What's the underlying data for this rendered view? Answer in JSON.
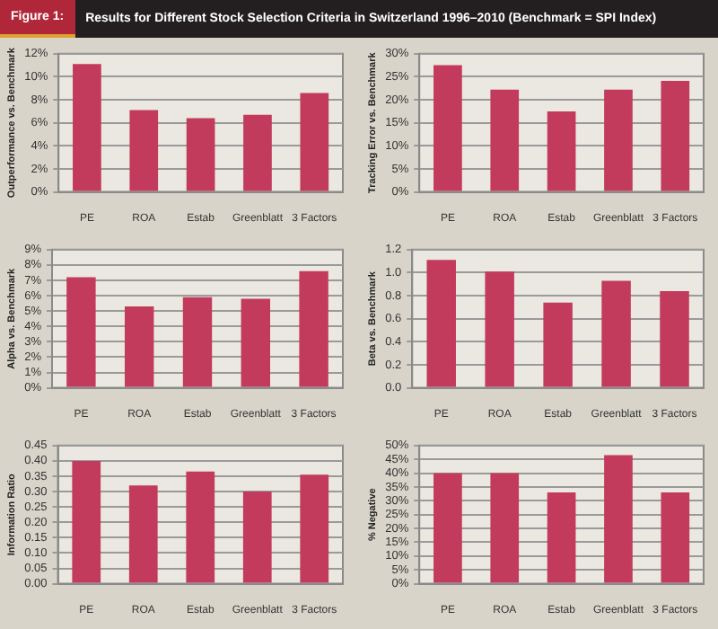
{
  "chart_data": [
    {
      "type": "bar",
      "title": "Results for Different Stock Selection Criteria in Switzerland 1996–2010 (Benchmark = SPI Index)",
      "annotations": [
        "Figure 1:"
      ],
      "ylabel": "Outperformance vs. Benchmark",
      "categories": [
        "PE",
        "ROA",
        "Estab",
        "Greenblatt",
        "3 Factors"
      ],
      "values": [
        11.1,
        7.1,
        6.4,
        6.7,
        8.6
      ],
      "color": "#c23a5c",
      "ylim": [
        0,
        12
      ],
      "yticks": [
        {
          "value": 0,
          "label": "0%"
        },
        {
          "value": 2,
          "label": "2%"
        },
        {
          "value": 4,
          "label": "4%"
        },
        {
          "value": 6,
          "label": "6%"
        },
        {
          "value": 8,
          "label": "8%"
        },
        {
          "value": 10,
          "label": "10%"
        },
        {
          "value": 12,
          "label": "12%"
        }
      ],
      "grid": "y",
      "legend": false
    },
    {
      "type": "bar",
      "ylabel": "Tracking Error vs. Benchmark",
      "categories": [
        "PE",
        "ROA",
        "Estab",
        "Greenblatt",
        "3 Factors"
      ],
      "values": [
        27.5,
        22.2,
        17.5,
        22.2,
        24.1
      ],
      "color": "#c23a5c",
      "ylim": [
        0,
        30
      ],
      "yticks": [
        {
          "value": 0,
          "label": "0%"
        },
        {
          "value": 5,
          "label": "5%"
        },
        {
          "value": 10,
          "label": "10%"
        },
        {
          "value": 15,
          "label": "15%"
        },
        {
          "value": 20,
          "label": "20%"
        },
        {
          "value": 25,
          "label": "25%"
        },
        {
          "value": 30,
          "label": "30%"
        }
      ],
      "grid": "y",
      "legend": false
    },
    {
      "type": "bar",
      "ylabel": "Alpha vs. Benchmark",
      "categories": [
        "PE",
        "ROA",
        "Estab",
        "Greenblatt",
        "3 Factors"
      ],
      "values": [
        7.2,
        5.3,
        5.9,
        5.8,
        7.6
      ],
      "color": "#c23a5c",
      "ylim": [
        0,
        9
      ],
      "yticks": [
        {
          "value": 0,
          "label": "0%"
        },
        {
          "value": 1,
          "label": "1%"
        },
        {
          "value": 2,
          "label": "2%"
        },
        {
          "value": 3,
          "label": "3%"
        },
        {
          "value": 4,
          "label": "4%"
        },
        {
          "value": 5,
          "label": "5%"
        },
        {
          "value": 6,
          "label": "6%"
        },
        {
          "value": 7,
          "label": "7%"
        },
        {
          "value": 8,
          "label": "8%"
        },
        {
          "value": 9,
          "label": "9%"
        }
      ],
      "grid": "y",
      "legend": false
    },
    {
      "type": "bar",
      "ylabel": "Beta vs. Benchmark",
      "categories": [
        "PE",
        "ROA",
        "Estab",
        "Greenblatt",
        "3 Factors"
      ],
      "values": [
        1.11,
        1.01,
        0.74,
        0.93,
        0.84
      ],
      "color": "#c23a5c",
      "ylim": [
        0,
        1.2
      ],
      "yticks": [
        {
          "value": 0,
          "label": "0.0"
        },
        {
          "value": 0.2,
          "label": "0.2"
        },
        {
          "value": 0.4,
          "label": "0.4"
        },
        {
          "value": 0.6,
          "label": "0.6"
        },
        {
          "value": 0.8,
          "label": "0.8"
        },
        {
          "value": 1,
          "label": "1.0"
        },
        {
          "value": 1.2,
          "label": "1.2"
        }
      ],
      "grid": "y",
      "legend": false
    },
    {
      "type": "bar",
      "ylabel": "Information Ratio",
      "categories": [
        "PE",
        "ROA",
        "Estab",
        "Greenblatt",
        "3 Factors"
      ],
      "values": [
        0.4,
        0.32,
        0.365,
        0.3,
        0.355
      ],
      "color": "#c23a5c",
      "ylim": [
        0,
        0.45
      ],
      "yticks": [
        {
          "value": 0,
          "label": "0.00"
        },
        {
          "value": 0.05,
          "label": "0.05"
        },
        {
          "value": 0.1,
          "label": "0.10"
        },
        {
          "value": 0.15,
          "label": "0.15"
        },
        {
          "value": 0.2,
          "label": "0.20"
        },
        {
          "value": 0.25,
          "label": "0.25"
        },
        {
          "value": 0.3,
          "label": "0.30"
        },
        {
          "value": 0.35,
          "label": "0.35"
        },
        {
          "value": 0.4,
          "label": "0.40"
        },
        {
          "value": 0.45,
          "label": "0.45"
        }
      ],
      "grid": "y",
      "legend": false
    },
    {
      "type": "bar",
      "ylabel": "% Negative",
      "categories": [
        "PE",
        "ROA",
        "Estab",
        "Greenblatt",
        "3 Factors"
      ],
      "values": [
        40,
        40,
        33,
        46.5,
        33
      ],
      "color": "#c23a5c",
      "ylim": [
        0,
        50
      ],
      "yticks": [
        {
          "value": 0,
          "label": "0%"
        },
        {
          "value": 5,
          "label": "5%"
        },
        {
          "value": 10,
          "label": "10%"
        },
        {
          "value": 15,
          "label": "15%"
        },
        {
          "value": 20,
          "label": "20%"
        },
        {
          "value": 25,
          "label": "25%"
        },
        {
          "value": 30,
          "label": "30%"
        },
        {
          "value": 35,
          "label": "35%"
        },
        {
          "value": 40,
          "label": "40%"
        },
        {
          "value": 45,
          "label": "45%"
        },
        {
          "value": 50,
          "label": "50%"
        }
      ],
      "grid": "y",
      "legend": false
    }
  ]
}
